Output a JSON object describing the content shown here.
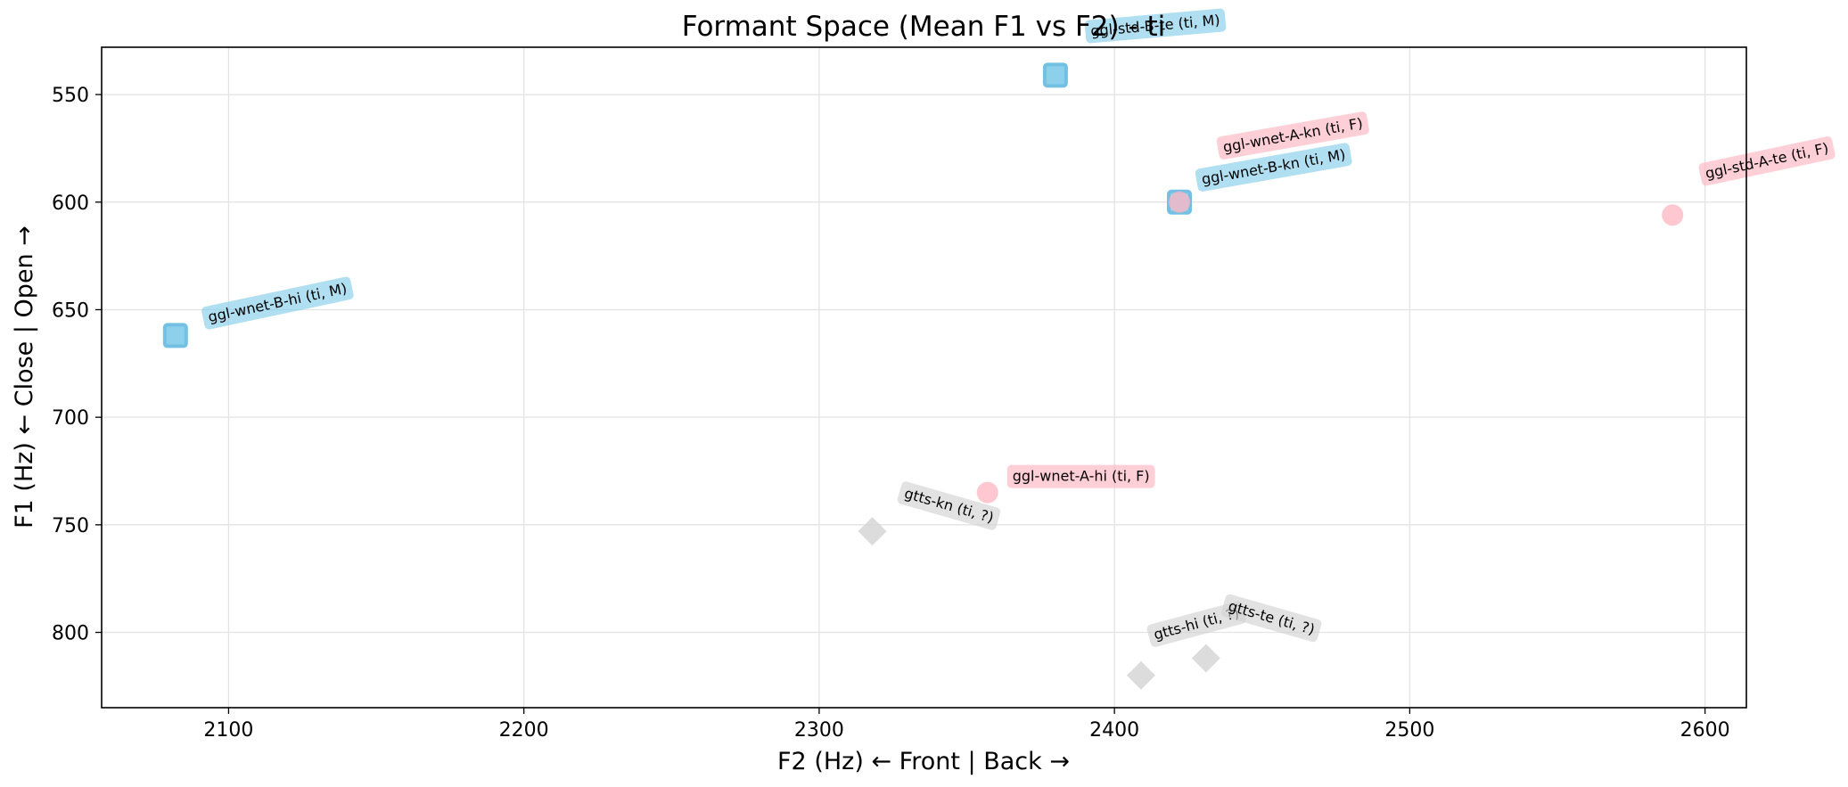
{
  "chart_data": {
    "type": "scatter",
    "title": "Formant Space (Mean F1 vs F2) - ti",
    "xlabel": "F2 (Hz) ← Front | Back →",
    "ylabel": "F1 (Hz) ← Close | Open →",
    "xlim": [
      2057,
      2614
    ],
    "ylim": [
      835,
      528
    ],
    "y_inverted": true,
    "xticks": [
      2100,
      2200,
      2300,
      2400,
      2500,
      2600
    ],
    "yticks": [
      550,
      600,
      650,
      700,
      750,
      800
    ],
    "grid": true,
    "colors": {
      "M": "#87ceeb",
      "F": "#ffb6c1",
      "?": "#d3d3d3"
    },
    "markers": {
      "M": "square",
      "F": "circle",
      "?": "diamond"
    },
    "points": [
      {
        "label": "ggl-std-B-te (ti, M)",
        "x": 2380,
        "y": 541,
        "group": "M"
      },
      {
        "label": "ggl-wnet-B-kn (ti, M)",
        "x": 2422,
        "y": 600,
        "group": "M"
      },
      {
        "label": "ggl-wnet-A-kn (ti, F)",
        "x": 2422,
        "y": 600,
        "group": "F"
      },
      {
        "label": "ggl-std-A-te (ti, F)",
        "x": 2589,
        "y": 606,
        "group": "F"
      },
      {
        "label": "ggl-wnet-B-hi (ti, M)",
        "x": 2082,
        "y": 662,
        "group": "M"
      },
      {
        "label": "ggl-wnet-A-hi (ti, F)",
        "x": 2357,
        "y": 735,
        "group": "F"
      },
      {
        "label": "gtts-kn (ti, ?)",
        "x": 2318,
        "y": 753,
        "group": "?"
      },
      {
        "label": "gtts-hi (ti, ?)",
        "x": 2409,
        "y": 820,
        "group": "?"
      },
      {
        "label": "gtts-te (ti, ?)",
        "x": 2431,
        "y": 812,
        "group": "?"
      }
    ]
  }
}
